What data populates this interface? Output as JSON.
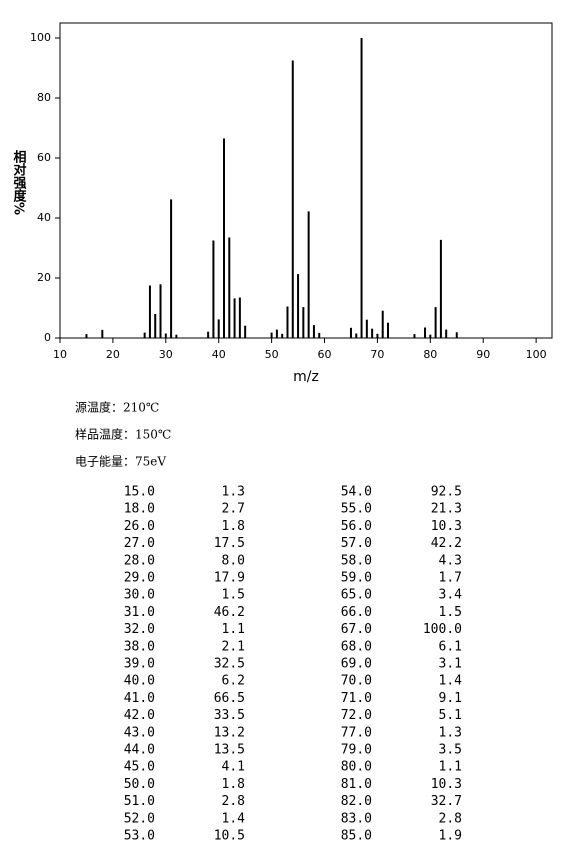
{
  "chart_data": {
    "type": "bar",
    "xlabel": "m/z",
    "ylabel": "相对强度%",
    "x": [
      15,
      18,
      26,
      27,
      28,
      29,
      30,
      31,
      32,
      38,
      39,
      40,
      41,
      42,
      43,
      44,
      45,
      50,
      51,
      52,
      53,
      54,
      55,
      56,
      57,
      58,
      59,
      65,
      66,
      67,
      68,
      69,
      70,
      71,
      72,
      77,
      79,
      80,
      81,
      82,
      83,
      85
    ],
    "values": [
      1.3,
      2.7,
      1.8,
      17.5,
      8.0,
      17.9,
      1.5,
      46.2,
      1.1,
      2.1,
      32.5,
      6.2,
      66.5,
      33.5,
      13.2,
      13.5,
      4.1,
      1.8,
      2.8,
      1.4,
      10.5,
      92.5,
      21.3,
      10.3,
      42.2,
      4.3,
      1.7,
      3.4,
      1.5,
      100,
      6.1,
      3.1,
      1.4,
      9.1,
      5.1,
      1.3,
      3.5,
      1.1,
      10.3,
      32.7,
      2.8,
      1.9
    ],
    "color": "#000000",
    "xlim": [
      10,
      103
    ],
    "ylim": [
      0,
      105
    ],
    "xticks": [
      10,
      20,
      30,
      40,
      50,
      60,
      70,
      80,
      90,
      100
    ],
    "yticks": [
      0,
      20,
      40,
      60,
      80,
      100
    ]
  },
  "conditions": [
    "源温度：210℃",
    "样品温度：150℃",
    "电子能量：75eV"
  ],
  "table": {
    "rows": [
      [
        "15.0",
        "1.3",
        "54.0",
        "92.5"
      ],
      [
        "18.0",
        "2.7",
        "55.0",
        "21.3"
      ],
      [
        "26.0",
        "1.8",
        "56.0",
        "10.3"
      ],
      [
        "27.0",
        "17.5",
        "57.0",
        "42.2"
      ],
      [
        "28.0",
        "8.0",
        "58.0",
        "4.3"
      ],
      [
        "29.0",
        "17.9",
        "59.0",
        "1.7"
      ],
      [
        "30.0",
        "1.5",
        "65.0",
        "3.4"
      ],
      [
        "31.0",
        "46.2",
        "66.0",
        "1.5"
      ],
      [
        "32.0",
        "1.1",
        "67.0",
        "100.0"
      ],
      [
        "38.0",
        "2.1",
        "68.0",
        "6.1"
      ],
      [
        "39.0",
        "32.5",
        "69.0",
        "3.1"
      ],
      [
        "40.0",
        "6.2",
        "70.0",
        "1.4"
      ],
      [
        "41.0",
        "66.5",
        "71.0",
        "9.1"
      ],
      [
        "42.0",
        "33.5",
        "72.0",
        "5.1"
      ],
      [
        "43.0",
        "13.2",
        "77.0",
        "1.3"
      ],
      [
        "44.0",
        "13.5",
        "79.0",
        "3.5"
      ],
      [
        "45.0",
        "4.1",
        "80.0",
        "1.1"
      ],
      [
        "50.0",
        "1.8",
        "81.0",
        "10.3"
      ],
      [
        "51.0",
        "2.8",
        "82.0",
        "32.7"
      ],
      [
        "52.0",
        "1.4",
        "83.0",
        "2.8"
      ],
      [
        "53.0",
        "10.5",
        "85.0",
        "1.9"
      ]
    ]
  }
}
